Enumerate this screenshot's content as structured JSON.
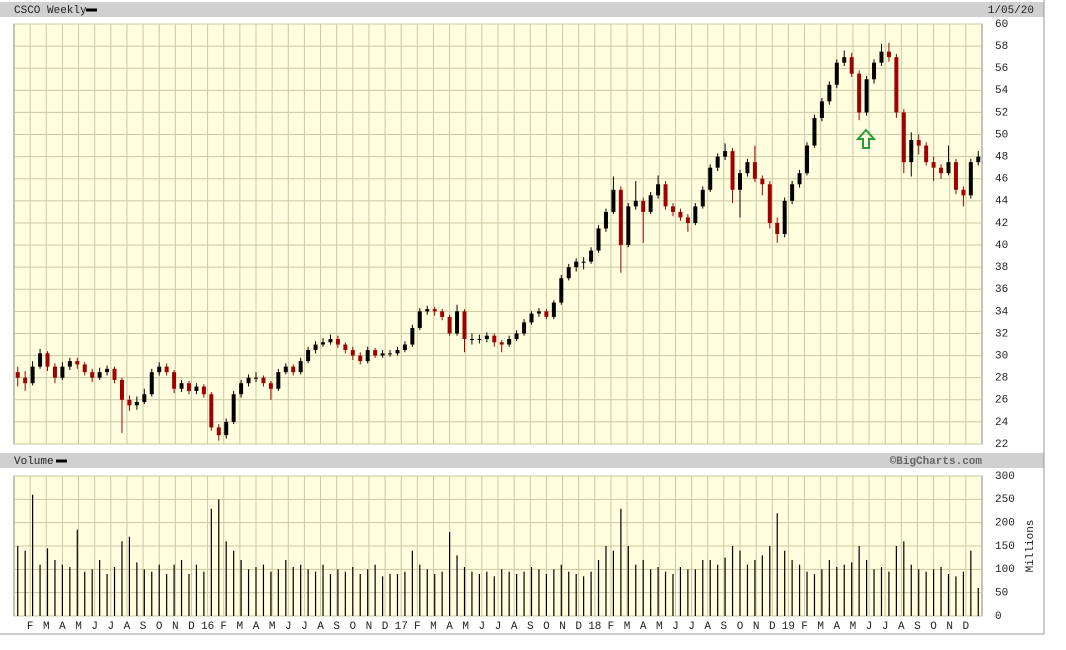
{
  "chart_data": [
    {
      "type": "candlestick",
      "title": "CSCO Weekly",
      "subtitle": "1/05/20",
      "up_color": "#000000",
      "down_color": "#a00000",
      "ylim": [
        22,
        60
      ],
      "yticks": [
        22,
        24,
        26,
        28,
        30,
        32,
        34,
        36,
        38,
        40,
        42,
        44,
        46,
        48,
        50,
        52,
        54,
        56,
        58,
        60
      ],
      "xlim": [
        0,
        60
      ],
      "ohlc": [
        [
          28.5,
          29.0,
          27.2,
          28.0
        ],
        [
          28.0,
          28.6,
          26.8,
          27.5
        ],
        [
          27.5,
          29.5,
          27.3,
          29.0
        ],
        [
          29.0,
          30.6,
          28.8,
          30.2
        ],
        [
          30.2,
          30.4,
          28.6,
          29.0
        ],
        [
          29.0,
          29.3,
          27.5,
          28.0
        ],
        [
          28.0,
          29.4,
          27.8,
          29.0
        ],
        [
          29.0,
          29.8,
          28.7,
          29.5
        ],
        [
          29.5,
          29.8,
          28.8,
          29.2
        ],
        [
          29.2,
          29.4,
          28.2,
          28.5
        ],
        [
          28.5,
          28.8,
          27.6,
          28.0
        ],
        [
          28.0,
          28.9,
          27.8,
          28.5
        ],
        [
          28.5,
          29.1,
          28.2,
          28.8
        ],
        [
          28.8,
          29.0,
          27.5,
          27.8
        ],
        [
          27.8,
          28.0,
          23.0,
          26.0
        ],
        [
          26.0,
          26.4,
          25.0,
          25.5
        ],
        [
          25.5,
          26.3,
          25.1,
          25.8
        ],
        [
          25.8,
          27.0,
          25.6,
          26.5
        ],
        [
          26.5,
          28.8,
          26.3,
          28.5
        ],
        [
          28.5,
          29.4,
          28.2,
          29.0
        ],
        [
          29.0,
          29.3,
          28.2,
          28.5
        ],
        [
          28.5,
          28.7,
          26.6,
          27.0
        ],
        [
          27.0,
          27.8,
          26.7,
          27.5
        ],
        [
          27.5,
          27.7,
          26.5,
          26.8
        ],
        [
          26.8,
          27.5,
          26.5,
          27.2
        ],
        [
          27.2,
          27.4,
          26.2,
          26.5
        ],
        [
          26.5,
          26.7,
          23.2,
          23.5
        ],
        [
          23.5,
          23.8,
          22.3,
          22.8
        ],
        [
          22.8,
          24.3,
          22.5,
          24.0
        ],
        [
          24.0,
          26.8,
          23.8,
          26.5
        ],
        [
          26.5,
          27.8,
          26.2,
          27.5
        ],
        [
          27.5,
          28.3,
          27.2,
          28.0
        ],
        [
          28.0,
          28.5,
          27.6,
          28.0
        ],
        [
          28.0,
          28.2,
          27.2,
          27.5
        ],
        [
          27.5,
          27.7,
          26.0,
          27.0
        ],
        [
          27.0,
          28.8,
          26.8,
          28.5
        ],
        [
          28.5,
          29.3,
          28.3,
          29.0
        ],
        [
          29.0,
          29.2,
          28.2,
          28.5
        ],
        [
          28.5,
          29.8,
          28.3,
          29.5
        ],
        [
          29.5,
          30.8,
          29.3,
          30.5
        ],
        [
          30.5,
          31.3,
          30.2,
          31.0
        ],
        [
          31.0,
          31.6,
          30.8,
          31.2
        ],
        [
          31.2,
          31.9,
          31.0,
          31.5
        ],
        [
          31.5,
          31.8,
          30.7,
          31.0
        ],
        [
          31.0,
          31.2,
          30.2,
          30.5
        ],
        [
          30.5,
          30.8,
          29.6,
          30.0
        ],
        [
          30.0,
          30.3,
          29.2,
          29.5
        ],
        [
          29.5,
          30.8,
          29.3,
          30.5
        ],
        [
          30.5,
          30.7,
          29.8,
          30.0
        ],
        [
          30.0,
          30.5,
          29.8,
          30.2
        ],
        [
          30.2,
          30.5,
          29.9,
          30.2
        ],
        [
          30.2,
          30.8,
          30.0,
          30.5
        ],
        [
          30.5,
          31.3,
          30.3,
          31.0
        ],
        [
          31.0,
          32.8,
          30.8,
          32.5
        ],
        [
          32.5,
          34.3,
          32.3,
          34.0
        ],
        [
          34.0,
          34.5,
          33.7,
          34.2
        ],
        [
          34.2,
          34.4,
          33.6,
          34.0
        ],
        [
          34.0,
          34.2,
          33.2,
          33.5
        ],
        [
          33.5,
          33.7,
          31.8,
          32.0
        ],
        [
          32.0,
          34.6,
          31.8,
          34.0
        ],
        [
          34.0,
          34.2,
          30.3,
          31.5
        ],
        [
          31.5,
          32.0,
          31.0,
          31.5
        ],
        [
          31.5,
          31.9,
          31.1,
          31.5
        ],
        [
          31.5,
          32.1,
          31.2,
          31.8
        ],
        [
          31.8,
          32.0,
          30.8,
          31.2
        ],
        [
          31.2,
          31.4,
          30.3,
          31.0
        ],
        [
          31.0,
          31.8,
          30.8,
          31.5
        ],
        [
          31.5,
          32.3,
          31.3,
          32.0
        ],
        [
          32.0,
          33.3,
          31.8,
          33.0
        ],
        [
          33.0,
          34.0,
          32.8,
          33.8
        ],
        [
          33.8,
          34.3,
          33.5,
          34.0
        ],
        [
          34.0,
          34.2,
          33.3,
          33.5
        ],
        [
          33.5,
          35.0,
          33.3,
          34.8
        ],
        [
          34.8,
          37.3,
          34.6,
          37.0
        ],
        [
          37.0,
          38.3,
          36.8,
          38.0
        ],
        [
          38.0,
          38.8,
          37.6,
          38.5
        ],
        [
          38.5,
          38.9,
          37.8,
          38.5
        ],
        [
          38.5,
          39.8,
          38.3,
          39.5
        ],
        [
          39.5,
          41.8,
          39.3,
          41.5
        ],
        [
          41.5,
          43.3,
          41.2,
          43.0
        ],
        [
          43.0,
          46.2,
          42.8,
          45.0
        ],
        [
          45.0,
          45.3,
          37.5,
          40.0
        ],
        [
          40.0,
          43.8,
          39.8,
          43.5
        ],
        [
          43.5,
          45.8,
          43.2,
          44.0
        ],
        [
          44.0,
          44.3,
          40.2,
          43.0
        ],
        [
          43.0,
          44.8,
          42.8,
          44.5
        ],
        [
          44.5,
          46.3,
          44.2,
          45.5
        ],
        [
          45.5,
          45.8,
          43.2,
          43.5
        ],
        [
          43.5,
          43.8,
          42.6,
          43.0
        ],
        [
          43.0,
          43.3,
          42.2,
          42.5
        ],
        [
          42.5,
          42.8,
          41.2,
          42.0
        ],
        [
          42.0,
          43.8,
          41.8,
          43.5
        ],
        [
          43.5,
          45.3,
          43.3,
          45.0
        ],
        [
          45.0,
          47.3,
          44.8,
          47.0
        ],
        [
          47.0,
          48.3,
          46.7,
          48.0
        ],
        [
          48.0,
          49.2,
          47.7,
          48.5
        ],
        [
          48.5,
          48.8,
          43.8,
          45.0
        ],
        [
          45.0,
          46.8,
          42.5,
          46.5
        ],
        [
          46.5,
          47.8,
          46.2,
          47.5
        ],
        [
          47.5,
          49.0,
          45.7,
          46.0
        ],
        [
          46.0,
          46.3,
          44.5,
          45.5
        ],
        [
          45.5,
          45.8,
          41.5,
          42.0
        ],
        [
          42.0,
          42.5,
          40.2,
          41.0
        ],
        [
          41.0,
          44.3,
          40.7,
          44.0
        ],
        [
          44.0,
          45.8,
          43.7,
          45.5
        ],
        [
          45.5,
          46.8,
          45.2,
          46.5
        ],
        [
          46.5,
          49.3,
          46.3,
          49.0
        ],
        [
          49.0,
          51.8,
          48.8,
          51.5
        ],
        [
          51.5,
          53.3,
          51.2,
          53.0
        ],
        [
          53.0,
          54.8,
          52.7,
          54.5
        ],
        [
          54.5,
          56.8,
          54.2,
          56.5
        ],
        [
          56.5,
          57.6,
          56.2,
          57.0
        ],
        [
          57.0,
          57.4,
          55.2,
          55.5
        ],
        [
          55.5,
          55.8,
          51.3,
          52.0
        ],
        [
          52.0,
          55.3,
          51.7,
          55.0
        ],
        [
          55.0,
          56.8,
          54.6,
          56.5
        ],
        [
          56.5,
          58.2,
          56.2,
          57.5
        ],
        [
          57.5,
          58.3,
          56.6,
          57.0
        ],
        [
          57.0,
          57.3,
          51.5,
          52.0
        ],
        [
          52.0,
          52.3,
          46.5,
          47.5
        ],
        [
          47.5,
          50.2,
          46.2,
          49.5
        ],
        [
          49.5,
          50.0,
          48.2,
          49.0
        ],
        [
          49.0,
          49.3,
          47.2,
          47.5
        ],
        [
          47.5,
          48.0,
          45.8,
          47.0
        ],
        [
          47.0,
          47.3,
          46.0,
          46.5
        ],
        [
          46.5,
          49.0,
          46.3,
          47.5
        ],
        [
          47.5,
          47.8,
          44.6,
          45.0
        ],
        [
          45.0,
          45.3,
          43.5,
          44.5
        ],
        [
          44.5,
          47.8,
          44.2,
          47.5
        ],
        [
          47.5,
          48.5,
          47.2,
          48.0
        ]
      ]
    },
    {
      "type": "bar",
      "title": "Volume",
      "annotation": "©BigCharts.com",
      "ylabel": "Millions",
      "color": "#000000",
      "ylim": [
        0,
        300
      ],
      "yticks": [
        0,
        50,
        100,
        150,
        200,
        250,
        300
      ],
      "xlim": [
        0,
        60
      ],
      "xticks": [
        {
          "value": 1,
          "label": "F"
        },
        {
          "value": 2,
          "label": "M"
        },
        {
          "value": 3,
          "label": "A"
        },
        {
          "value": 4,
          "label": "M"
        },
        {
          "value": 5,
          "label": "J"
        },
        {
          "value": 6,
          "label": "J"
        },
        {
          "value": 7,
          "label": "A"
        },
        {
          "value": 8,
          "label": "S"
        },
        {
          "value": 9,
          "label": "O"
        },
        {
          "value": 10,
          "label": "N"
        },
        {
          "value": 11,
          "label": "D"
        },
        {
          "value": 12,
          "label": "16"
        },
        {
          "value": 13,
          "label": "F"
        },
        {
          "value": 14,
          "label": "M"
        },
        {
          "value": 15,
          "label": "A"
        },
        {
          "value": 16,
          "label": "M"
        },
        {
          "value": 17,
          "label": "J"
        },
        {
          "value": 18,
          "label": "J"
        },
        {
          "value": 19,
          "label": "A"
        },
        {
          "value": 20,
          "label": "S"
        },
        {
          "value": 21,
          "label": "O"
        },
        {
          "value": 22,
          "label": "N"
        },
        {
          "value": 23,
          "label": "D"
        },
        {
          "value": 24,
          "label": "17"
        },
        {
          "value": 25,
          "label": "F"
        },
        {
          "value": 26,
          "label": "M"
        },
        {
          "value": 27,
          "label": "A"
        },
        {
          "value": 28,
          "label": "M"
        },
        {
          "value": 29,
          "label": "J"
        },
        {
          "value": 30,
          "label": "J"
        },
        {
          "value": 31,
          "label": "A"
        },
        {
          "value": 32,
          "label": "S"
        },
        {
          "value": 33,
          "label": "O"
        },
        {
          "value": 34,
          "label": "N"
        },
        {
          "value": 35,
          "label": "D"
        },
        {
          "value": 36,
          "label": "18"
        },
        {
          "value": 37,
          "label": "F"
        },
        {
          "value": 38,
          "label": "M"
        },
        {
          "value": 39,
          "label": "A"
        },
        {
          "value": 40,
          "label": "M"
        },
        {
          "value": 41,
          "label": "J"
        },
        {
          "value": 42,
          "label": "J"
        },
        {
          "value": 43,
          "label": "A"
        },
        {
          "value": 44,
          "label": "S"
        },
        {
          "value": 45,
          "label": "O"
        },
        {
          "value": 46,
          "label": "N"
        },
        {
          "value": 47,
          "label": "D"
        },
        {
          "value": 48,
          "label": "19"
        },
        {
          "value": 49,
          "label": "F"
        },
        {
          "value": 50,
          "label": "M"
        },
        {
          "value": 51,
          "label": "A"
        },
        {
          "value": 52,
          "label": "M"
        },
        {
          "value": 53,
          "label": "J"
        },
        {
          "value": 54,
          "label": "J"
        },
        {
          "value": 55,
          "label": "A"
        },
        {
          "value": 56,
          "label": "S"
        },
        {
          "value": 57,
          "label": "O"
        },
        {
          "value": 58,
          "label": "N"
        },
        {
          "value": 59,
          "label": "D"
        }
      ],
      "values": [
        150,
        140,
        260,
        110,
        145,
        120,
        110,
        105,
        185,
        95,
        100,
        120,
        90,
        105,
        160,
        170,
        115,
        100,
        95,
        110,
        90,
        110,
        120,
        90,
        110,
        95,
        230,
        250,
        160,
        140,
        120,
        100,
        105,
        110,
        95,
        100,
        120,
        105,
        110,
        100,
        95,
        110,
        90,
        100,
        95,
        105,
        90,
        100,
        110,
        85,
        90,
        90,
        95,
        140,
        110,
        100,
        90,
        95,
        180,
        130,
        105,
        95,
        90,
        95,
        85,
        100,
        95,
        90,
        95,
        105,
        100,
        90,
        100,
        110,
        95,
        90,
        85,
        95,
        120,
        150,
        140,
        230,
        150,
        110,
        120,
        100,
        105,
        95,
        90,
        105,
        100,
        100,
        120,
        120,
        110,
        125,
        150,
        140,
        110,
        120,
        130,
        150,
        220,
        140,
        120,
        110,
        95,
        90,
        100,
        120,
        105,
        110,
        115,
        150,
        120,
        100,
        105,
        95,
        150,
        160,
        110,
        100,
        95,
        100,
        105,
        90,
        85,
        95,
        140,
        60
      ]
    }
  ]
}
